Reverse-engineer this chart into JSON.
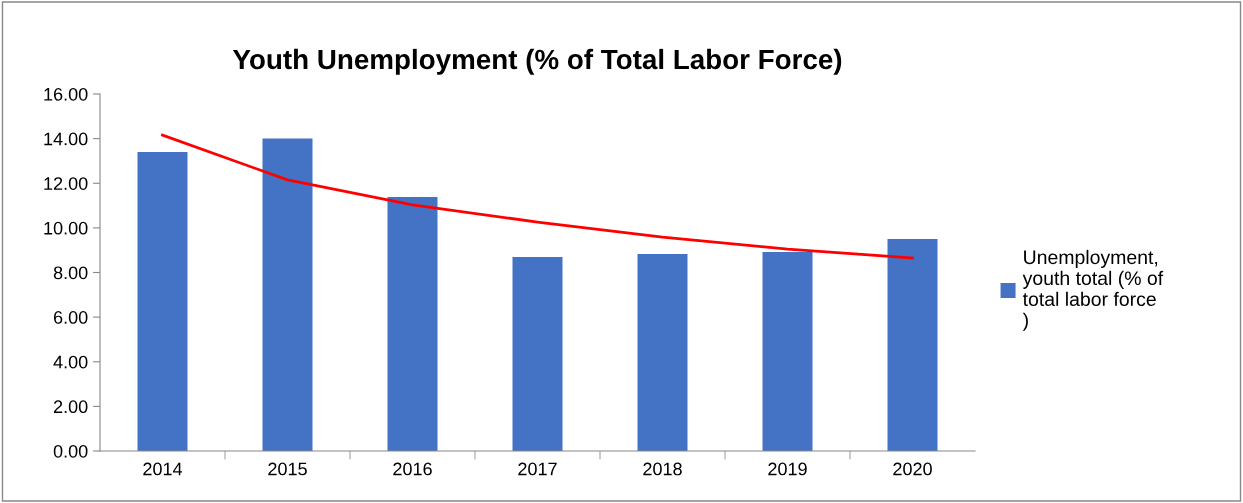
{
  "chart_data": {
    "type": "bar",
    "title": "Youth Unemployment (% of Total Labor Force)",
    "categories": [
      "2014",
      "2015",
      "2016",
      "2017",
      "2018",
      "2019",
      "2020"
    ],
    "series": [
      {
        "name": "Unemployment, youth total (% of total labor force )",
        "color": "#4472c4",
        "values": [
          13.4,
          14.0,
          11.38,
          8.7,
          8.83,
          8.92,
          9.5
        ]
      },
      {
        "type": "line",
        "color": "#ff0000",
        "values": [
          14.16,
          12.15,
          11.03,
          10.26,
          9.59,
          9.05,
          8.65
        ]
      }
    ],
    "ylim": [
      0,
      16
    ],
    "yticks": [
      {
        "value": 0,
        "label": "0.00"
      },
      {
        "value": 2,
        "label": "2.00"
      },
      {
        "value": 4,
        "label": "4.00"
      },
      {
        "value": 6,
        "label": "6.00"
      },
      {
        "value": 8,
        "label": "8.00"
      },
      {
        "value": 10,
        "label": "10.00"
      },
      {
        "value": 12,
        "label": "12.00"
      },
      {
        "value": 14,
        "label": "14.00"
      },
      {
        "value": 16,
        "label": "16.00"
      }
    ],
    "grid": false,
    "legend": "right"
  }
}
